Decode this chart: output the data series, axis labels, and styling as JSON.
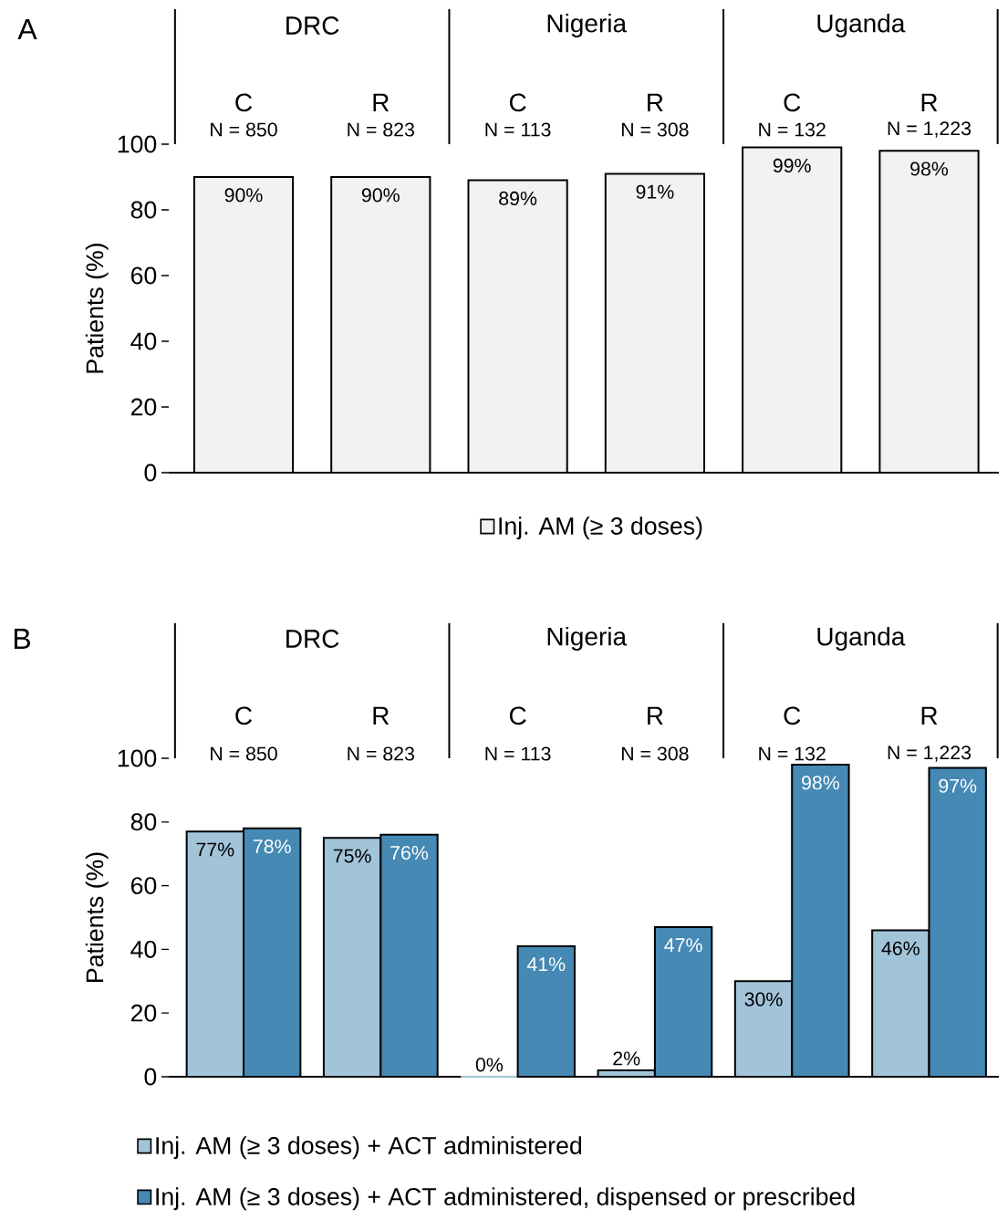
{
  "chart_data": [
    {
      "type": "bar",
      "title": "A",
      "ylabel": "Patients (%)",
      "categories": [
        "C",
        "R",
        "C",
        "R",
        "C",
        "R"
      ],
      "annotations": [
        "DRC",
        "Nigeria",
        "Uganda",
        "N = 850",
        "N = 823",
        "N = 113",
        "N = 308",
        "N = 132",
        "N = 1,223"
      ],
      "series": [
        {
          "name": "Inj. AM (≥ 3 doses)",
          "color": "#f2f2f2",
          "values": [
            90,
            90,
            89,
            91,
            99,
            98
          ],
          "value_labels": [
            "90%",
            "90%",
            "89%",
            "91%",
            "99%",
            "98%"
          ]
        }
      ],
      "ylim": [
        0,
        100
      ],
      "yticks": [
        0,
        20,
        40,
        60,
        80,
        100
      ],
      "legend": "bottom"
    },
    {
      "type": "bar",
      "title": "B",
      "ylabel": "Patients (%)",
      "categories": [
        "C",
        "R",
        "C",
        "R",
        "C",
        "R"
      ],
      "annotations": [
        "DRC",
        "Nigeria",
        "Uganda",
        "N = 850",
        "N = 823",
        "N = 113",
        "N = 308",
        "N = 132",
        "N = 1,223"
      ],
      "series": [
        {
          "name": "Inj. AM (≥ 3 doses) + ACT administered",
          "color": "#a2c4d9",
          "values": [
            77,
            75,
            0,
            2,
            30,
            46
          ],
          "value_labels": [
            "77%",
            "75%",
            "0%",
            "2%",
            "30%",
            "46%"
          ]
        },
        {
          "name": "Inj. AM (≥ 3 doses) + ACT administered, dispensed or prescribed",
          "color": "#4589b4",
          "values": [
            78,
            76,
            41,
            47,
            98,
            97
          ],
          "value_labels": [
            "78%",
            "76%",
            "41%",
            "47%",
            "98%",
            "97%"
          ]
        }
      ],
      "ylim": [
        0,
        100
      ],
      "yticks": [
        0,
        20,
        40,
        60,
        80,
        100
      ],
      "legend": "bottom"
    }
  ]
}
